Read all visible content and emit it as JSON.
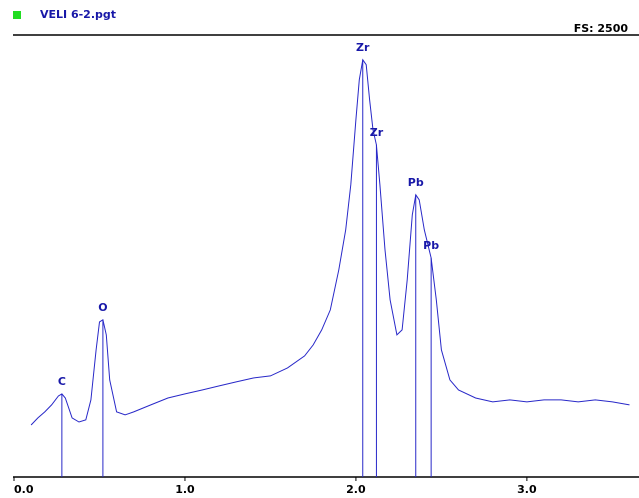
{
  "chart_data": {
    "type": "line",
    "title": "VELI 6-2.pgt",
    "full_scale_label": "FS: 2500",
    "x": [
      0.1,
      0.14,
      0.18,
      0.22,
      0.26,
      0.28,
      0.3,
      0.34,
      0.38,
      0.42,
      0.45,
      0.48,
      0.5,
      0.52,
      0.54,
      0.56,
      0.6,
      0.65,
      0.7,
      0.8,
      0.9,
      1.0,
      1.1,
      1.2,
      1.3,
      1.4,
      1.5,
      1.6,
      1.7,
      1.75,
      1.8,
      1.85,
      1.9,
      1.94,
      1.97,
      2.0,
      2.02,
      2.04,
      2.06,
      2.08,
      2.1,
      2.12,
      2.14,
      2.17,
      2.2,
      2.24,
      2.27,
      2.3,
      2.33,
      2.35,
      2.37,
      2.4,
      2.44,
      2.47,
      2.5,
      2.55,
      2.6,
      2.7,
      2.8,
      2.9,
      3.0,
      3.1,
      3.2,
      3.3,
      3.4,
      3.5,
      3.6
    ],
    "values": [
      294,
      334,
      368,
      408,
      458,
      470,
      447,
      334,
      311,
      323,
      436,
      719,
      877,
      889,
      804,
      549,
      368,
      351,
      368,
      408,
      447,
      470,
      492,
      515,
      538,
      560,
      572,
      617,
      685,
      747,
      832,
      945,
      1172,
      1398,
      1653,
      2021,
      2247,
      2360,
      2332,
      2134,
      1964,
      1879,
      1653,
      1285,
      1002,
      804,
      832,
      1115,
      1483,
      1596,
      1568,
      1398,
      1240,
      1002,
      719,
      549,
      492,
      447,
      425,
      436,
      425,
      436,
      436,
      425,
      436,
      425,
      408
    ],
    "color": "#2828c8",
    "markers": [
      {
        "label": "C",
        "x": 0.28,
        "value": 470
      },
      {
        "label": "O",
        "x": 0.52,
        "value": 889
      },
      {
        "label": "Zr",
        "x": 2.04,
        "value": 2360
      },
      {
        "label": "Zr",
        "x": 2.12,
        "value": 1879
      },
      {
        "label": "Pb",
        "x": 2.35,
        "value": 1596
      },
      {
        "label": "Pb",
        "x": 2.44,
        "value": 1240
      }
    ],
    "xlim": [
      0,
      3.65
    ],
    "ylim": [
      0,
      2500
    ],
    "xticks": [
      {
        "value": 0,
        "label": "0.0"
      },
      {
        "value": 1,
        "label": "1.0"
      },
      {
        "value": 2,
        "label": "2.0"
      },
      {
        "value": 3,
        "label": "3.0"
      }
    ]
  }
}
